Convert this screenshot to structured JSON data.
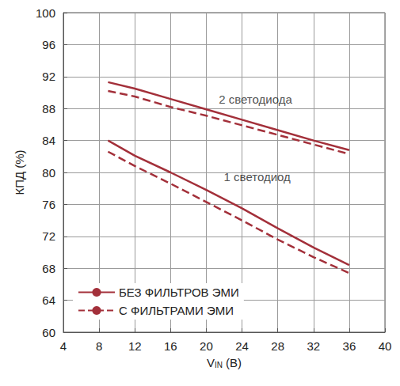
{
  "chart_data": {
    "type": "line",
    "xlabel": "VIN (В)",
    "ylabel": "КПД (%)",
    "x": [
      9,
      12,
      16,
      20,
      24,
      28,
      32,
      36
    ],
    "series": [
      {
        "name": "БЕЗ ФИЛЬТРОВ ЭМИ",
        "color": "#a3303a",
        "line_style": "solid",
        "values": [
          91.3,
          90.5,
          89.2,
          87.9,
          86.6,
          85.3,
          84.0,
          82.8
        ]
      },
      {
        "name": "С ФИЛЬТРАМИ ЭМИ",
        "color": "#a3303a",
        "line_style": "dashed",
        "values": [
          90.2,
          89.5,
          88.2,
          87.1,
          85.9,
          84.7,
          83.5,
          82.3
        ]
      },
      {
        "name": "БЕЗ ФИЛЬТРОВ ЭМИ",
        "color": "#a3303a",
        "line_style": "solid",
        "values": [
          84.0,
          82.1,
          80.0,
          77.8,
          75.5,
          73.0,
          70.6,
          68.4
        ]
      },
      {
        "name": "С ФИЛЬТРАМИ ЭМИ",
        "color": "#a3303a",
        "line_style": "dashed",
        "values": [
          82.6,
          80.8,
          78.6,
          76.3,
          74.0,
          71.6,
          69.4,
          67.4
        ]
      }
    ],
    "annotations": [
      {
        "text": "2 светодиода",
        "x": 25.5,
        "y": 89.2
      },
      {
        "text": "1 светодиод",
        "x": 25.7,
        "y": 79.5
      }
    ],
    "xlim": [
      4,
      40
    ],
    "xticks": [
      4,
      8,
      12,
      16,
      20,
      24,
      28,
      32,
      36,
      40
    ],
    "ylim": [
      60,
      100
    ],
    "yticks": [
      60,
      64,
      68,
      72,
      76,
      80,
      84,
      88,
      92,
      96,
      100
    ],
    "grid": true,
    "legend": "lower left"
  }
}
